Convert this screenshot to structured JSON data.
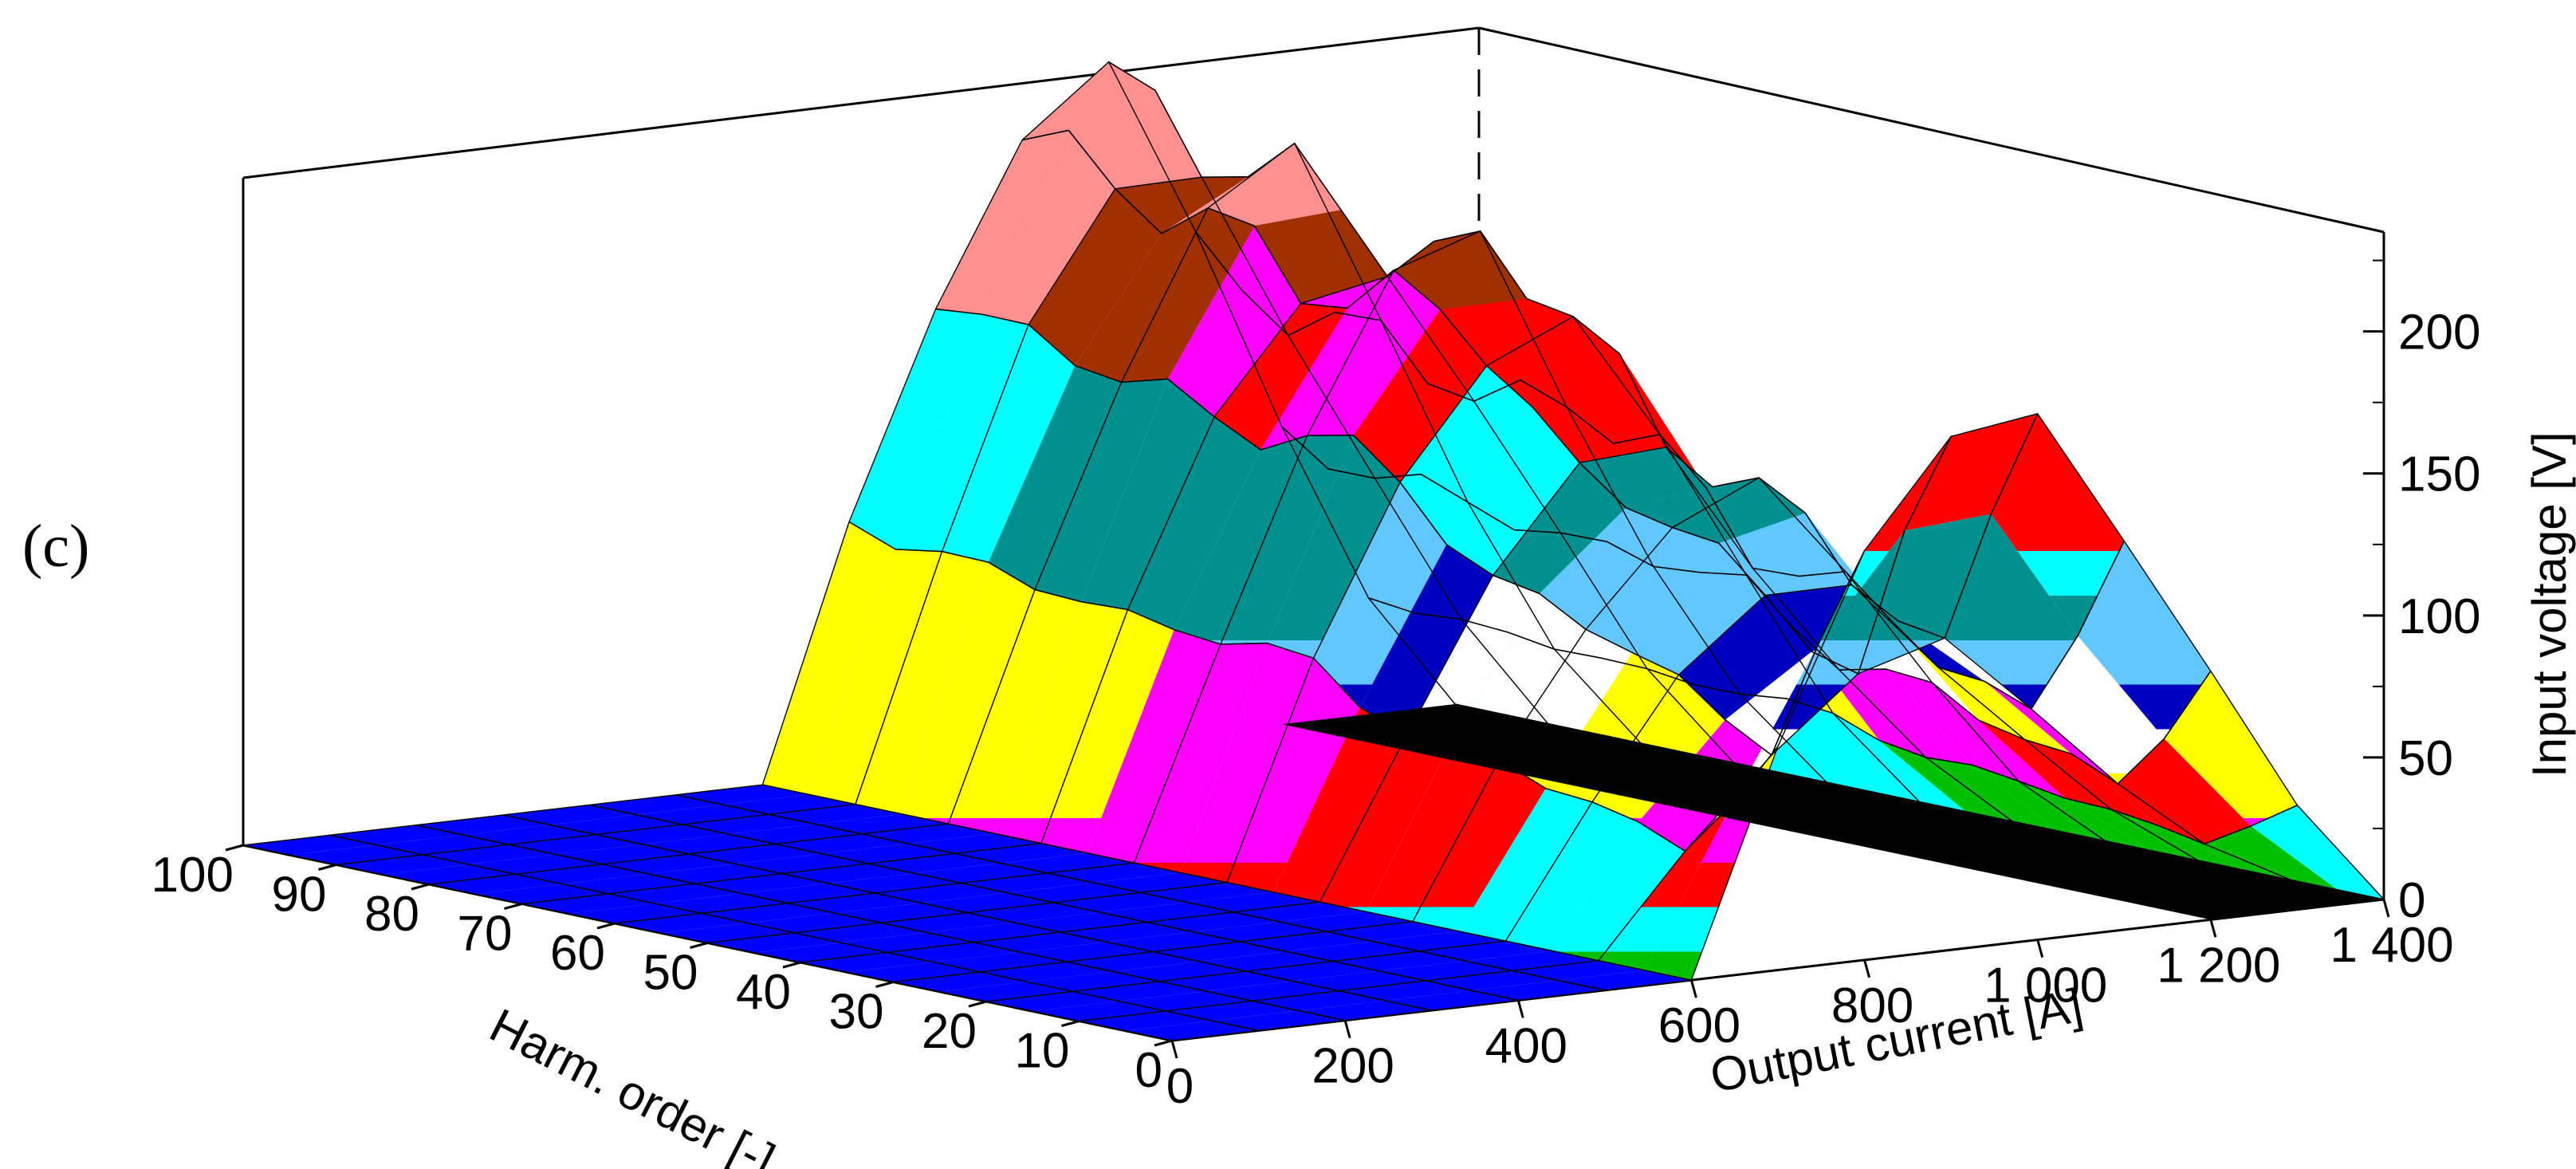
{
  "panel_label": "(c)",
  "chart_data": {
    "type": "surface-3d",
    "title": "",
    "xlabel": "Output current [A]",
    "ylabel": "Harm. order [-]",
    "zlabel": "Input voltage [V]",
    "x_ticks": [
      "0",
      "200",
      "400",
      "600",
      "800",
      "1 000",
      "1 200",
      "1 400"
    ],
    "y_ticks": [
      "0",
      "10",
      "20",
      "30",
      "40",
      "50",
      "60",
      "70",
      "80",
      "90",
      "100"
    ],
    "z_ticks": [
      "0",
      "50",
      "100",
      "150",
      "200"
    ],
    "xlim": [
      0,
      1400
    ],
    "ylim": [
      0,
      100
    ],
    "zlim": [
      0,
      235
    ],
    "color_bands_from_zero": [
      "#0000ff",
      "#00c000",
      "#00ffff",
      "#ff0000",
      "#ff00ff",
      "#ffff00",
      "#ffffff",
      "#0000c0",
      "#60c8ff",
      "#009090",
      "#00ffff",
      "#ff0000",
      "#ff00ff",
      "#a03000",
      "#ff9090"
    ],
    "current_samples_A": [
      0,
      100,
      200,
      300,
      400,
      500,
      600,
      700,
      800,
      900,
      1000,
      1100,
      1200,
      1300,
      1400
    ],
    "voltage_ridge_along_current": [
      {
        "current": 0,
        "voltage": 0
      },
      {
        "current": 600,
        "voltage": 0
      },
      {
        "current": 700,
        "voltage": 75
      },
      {
        "current": 800,
        "voltage": 140
      },
      {
        "current": 900,
        "voltage": 185
      },
      {
        "current": 1000,
        "voltage": 195
      },
      {
        "current": 1100,
        "voltage": 140
      },
      {
        "current": 1200,
        "voltage": 85
      },
      {
        "current": 1300,
        "voltage": 35
      },
      {
        "current": 1400,
        "voltage": 0
      }
    ],
    "peak_voltage_by_harmonic_order": [
      {
        "order": 0,
        "voltage": 195
      },
      {
        "order": 10,
        "voltage": 95
      },
      {
        "order": 20,
        "voltage": 115
      },
      {
        "order": 30,
        "voltage": 140
      },
      {
        "order": 40,
        "voltage": 145
      },
      {
        "order": 50,
        "voltage": 190
      },
      {
        "order": 60,
        "voltage": 200
      },
      {
        "order": 70,
        "voltage": 195
      },
      {
        "order": 80,
        "voltage": 215
      },
      {
        "order": 90,
        "voltage": 215
      },
      {
        "order": 100,
        "voltage": 235
      }
    ]
  }
}
